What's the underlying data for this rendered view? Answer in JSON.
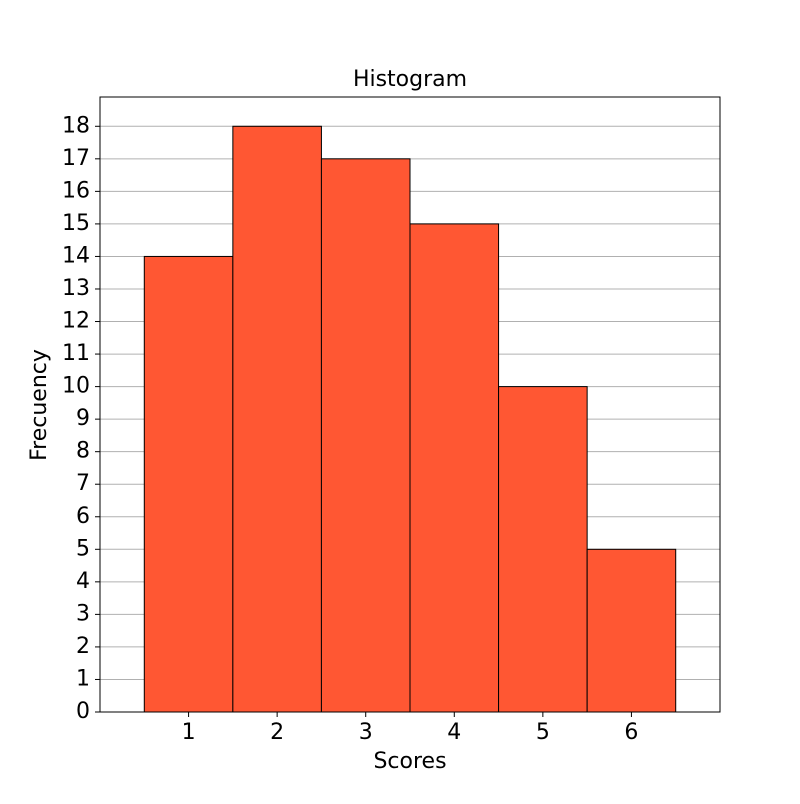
{
  "chart_data": {
    "type": "histogram",
    "title": "Histogram",
    "x_label": "Scores",
    "y_label": "Frecuency",
    "bins": [
      0.5,
      1.5,
      2.5,
      3.5,
      4.5,
      5.5,
      6.5
    ],
    "values": [
      14,
      18,
      17,
      15,
      10,
      5
    ],
    "color": "#ff5733",
    "edgecolor": "#000000",
    "xlim": [
      0,
      7
    ],
    "xticks": [
      1,
      2,
      3,
      4,
      5,
      6
    ],
    "ylim": [
      0,
      18.9
    ],
    "yticks": [
      0,
      1,
      2,
      3,
      4,
      5,
      6,
      7,
      8,
      9,
      10,
      11,
      12,
      13,
      14,
      15,
      16,
      17,
      18
    ],
    "grid": "y"
  }
}
